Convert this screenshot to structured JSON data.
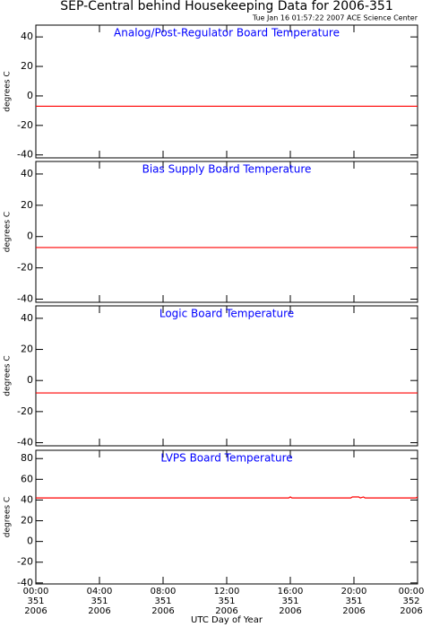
{
  "title": "SEP-Central behind Housekeeping Data for 2006-351",
  "timestamp": "Tue Jan 16 01:57:22 2007 ACE Science Center",
  "x_label": "UTC Day of Year",
  "chart_data": [
    {
      "type": "line",
      "title": "Analog/Post-Regulator Board Temperature",
      "y_label": "degrees C",
      "x": [
        0,
        24
      ],
      "values": [
        -7,
        -7
      ],
      "color": "#ff0000",
      "ylim": [
        -42,
        48
      ],
      "yticks": [
        -40,
        -20,
        0,
        20,
        40
      ]
    },
    {
      "type": "line",
      "title": "Bias Supply Board Temperature",
      "y_label": "degrees C",
      "x": [
        0,
        24
      ],
      "values": [
        -7,
        -7
      ],
      "color": "#ff0000",
      "ylim": [
        -42,
        48
      ],
      "yticks": [
        -40,
        -20,
        0,
        20,
        40
      ]
    },
    {
      "type": "line",
      "title": "Logic Board Temperature",
      "y_label": "degrees C",
      "x": [
        0,
        24
      ],
      "values": [
        -8,
        -8
      ],
      "color": "#ff0000",
      "ylim": [
        -42,
        48
      ],
      "yticks": [
        -40,
        -20,
        0,
        20,
        40
      ]
    },
    {
      "type": "line",
      "title": "LVPS Board Temperature",
      "y_label": "degrees C",
      "x": [
        0,
        15.9,
        16.0,
        16.1,
        19.8,
        19.9,
        20.3,
        20.4,
        20.6,
        20.7,
        23.9,
        24
      ],
      "values": [
        42,
        42,
        43,
        42,
        42,
        43,
        43,
        42,
        43,
        42,
        42,
        43
      ],
      "color": "#ff0000",
      "ylim": [
        -41,
        88
      ],
      "yticks": [
        -40,
        -20,
        0,
        20,
        40,
        60,
        80
      ],
      "xlim": [
        0,
        24
      ],
      "xticks": [
        {
          "value": 0,
          "label": "00:00\n351\n2006"
        },
        {
          "value": 4,
          "label": "04:00\n351\n2006"
        },
        {
          "value": 8,
          "label": "08:00\n351\n2006"
        },
        {
          "value": 12,
          "label": "12:00\n351\n2006"
        },
        {
          "value": 16,
          "label": "16:00\n351\n2006"
        },
        {
          "value": 20,
          "label": "20:00\n351\n2006"
        },
        {
          "value": 24,
          "label": "00:00\n352\n2006"
        }
      ]
    }
  ]
}
